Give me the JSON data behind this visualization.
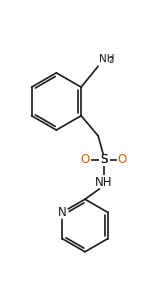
{
  "background_color": "#ffffff",
  "line_color": "#1a1a1a",
  "oxygen_color": "#cc6600",
  "figsize": [
    1.56,
    2.91
  ],
  "dpi": 100,
  "xlim": [
    0,
    10
  ],
  "ylim": [
    0,
    18.7
  ]
}
